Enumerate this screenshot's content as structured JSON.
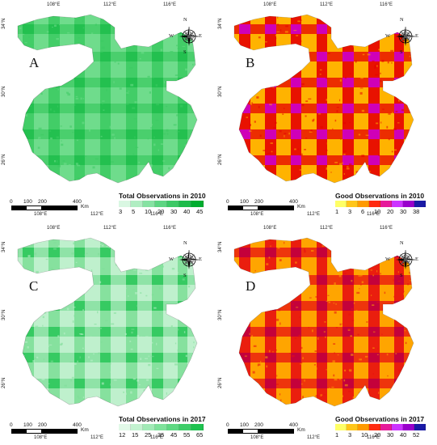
{
  "coords": {
    "top_lons": [
      "108°E",
      "112°E",
      "116°E"
    ],
    "bottom_lons": [
      "108°E",
      "112°E",
      "116°E"
    ],
    "lats": [
      "34°N",
      "30°N",
      "26°N"
    ]
  },
  "compass": {
    "n": "N",
    "s": "S",
    "e": "E",
    "w": "W"
  },
  "scalebar": {
    "ticks": [
      "0",
      "100",
      "200",
      "400"
    ],
    "unit": "Km"
  },
  "panels": [
    {
      "letter": "A",
      "legend_title": "Total Observations in 2010",
      "legend_labels": [
        "3",
        "5",
        "10",
        "20",
        "30",
        "40",
        "45"
      ],
      "legend_colors": [
        "#d9f7e2",
        "#b0edc2",
        "#86e2a2",
        "#5dd582",
        "#3cc865",
        "#1dbb4a",
        "#00ad2f"
      ],
      "map_base_color": "#6fdc8c",
      "map_stripe_color": "#3dcb63",
      "map_overlap_color": "#20bf4d"
    },
    {
      "letter": "B",
      "legend_title": "Good Observations in 2010",
      "legend_labels": [
        "1",
        "3",
        "6",
        "10",
        "20",
        "30",
        "38"
      ],
      "legend_colors": [
        "#ffff66",
        "#ffc61a",
        "#ff9a00",
        "#ff2a10",
        "#e6199a",
        "#cc33ff",
        "#9900cc",
        "#1a1aa6"
      ],
      "map_base_color": "#ffb300",
      "map_stripe_color": "#e60000",
      "map_overlap_color": "#cc00cc"
    },
    {
      "letter": "C",
      "legend_title": "Total Observations in 2017",
      "legend_labels": [
        "12",
        "15",
        "25",
        "35",
        "45",
        "55",
        "65"
      ],
      "legend_colors": [
        "#e2f9e8",
        "#c3f2d0",
        "#a1eab6",
        "#7fe29b",
        "#5fd882",
        "#3ecd68",
        "#1ec24f"
      ],
      "map_base_color": "#bff0cd",
      "map_stripe_color": "#7fdf99",
      "map_overlap_color": "#2ec85c"
    },
    {
      "letter": "D",
      "legend_title": "Good Observations in 2017",
      "legend_labels": [
        "1",
        "3",
        "10",
        "20",
        "30",
        "40",
        "52"
      ],
      "legend_colors": [
        "#ffff66",
        "#ffc61a",
        "#ff9a00",
        "#ff2a10",
        "#e6199a",
        "#cc33ff",
        "#9900cc",
        "#1a1aa6"
      ],
      "map_base_color": "#ffa500",
      "map_stripe_color": "#e81010",
      "map_overlap_color": "#c00040"
    }
  ]
}
